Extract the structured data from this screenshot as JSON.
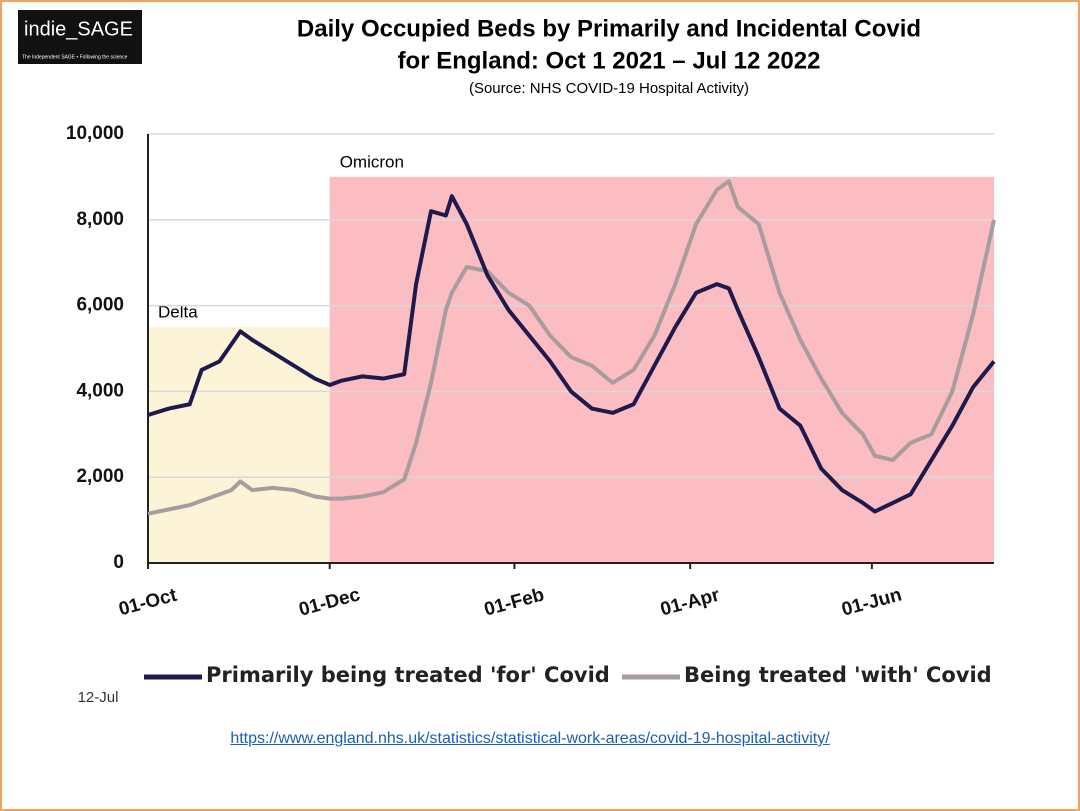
{
  "logo": {
    "name": "indie_SAGE",
    "tagline": "The Independent SAGE • Following the science"
  },
  "chart_data": {
    "type": "line",
    "title": "Daily Occupied Beds by Primarily and Incidental Covid",
    "title_line2": "for England: Oct 1 2021 – Jul 12 2022",
    "subtitle": "(Source: NHS COVID-19 Hospital Activity)",
    "x": [
      0,
      7,
      14,
      18,
      24,
      28,
      31,
      35,
      42,
      49,
      56,
      61,
      65,
      72,
      79,
      86,
      90,
      95,
      100,
      102,
      107,
      114,
      121,
      128,
      135,
      142,
      149,
      156,
      163,
      170,
      177,
      184,
      191,
      195,
      198,
      205,
      212,
      219,
      226,
      233,
      240,
      244,
      250,
      256,
      263,
      270,
      277,
      284
    ],
    "xlim": [
      0,
      284
    ],
    "xticks": [
      {
        "value": 0,
        "label": "01-Oct"
      },
      {
        "value": 61,
        "label": "01-Dec"
      },
      {
        "value": 123,
        "label": "01-Feb"
      },
      {
        "value": 182,
        "label": "01-Apr"
      },
      {
        "value": 243,
        "label": "01-Jun"
      }
    ],
    "ylim": [
      0,
      10000
    ],
    "yticks": [
      0,
      {
        "value": 2000,
        "label": "2,000"
      },
      {
        "value": 4000,
        "label": "4,000"
      },
      {
        "value": 6000,
        "label": "6,000"
      },
      {
        "value": 8000,
        "label": "8,000"
      },
      {
        "value": 10000,
        "label": "10,000"
      }
    ],
    "grid": true,
    "regions": [
      {
        "label": "Delta",
        "x": [
          0,
          61
        ],
        "y": 5500,
        "color": "#fdf3d6"
      },
      {
        "label": "Omicron",
        "x": [
          61,
          284
        ],
        "y": 9000,
        "color": "#fbbdc1"
      }
    ],
    "series": [
      {
        "name": "Primarily being treated 'for' Covid",
        "color": "#1f1a4d",
        "values": [
          3450,
          3600,
          3700,
          4500,
          4700,
          5100,
          5400,
          5200,
          4900,
          4600,
          4300,
          4150,
          4250,
          4350,
          4300,
          4400,
          6500,
          8200,
          8100,
          8550,
          7900,
          6700,
          5900,
          5300,
          4700,
          4000,
          3600,
          3500,
          3700,
          4600,
          5500,
          6300,
          6500,
          6400,
          5900,
          4800,
          3600,
          3200,
          2200,
          1700,
          1400,
          1200,
          1400,
          1600,
          2400,
          3200,
          4100,
          4700
        ]
      },
      {
        "name": "Being treated 'with' Covid",
        "color": "#a89c9c",
        "values": [
          1150,
          1250,
          1350,
          1450,
          1600,
          1700,
          1900,
          1700,
          1750,
          1700,
          1550,
          1500,
          1500,
          1550,
          1650,
          1950,
          2800,
          4200,
          5900,
          6300,
          6900,
          6800,
          6300,
          6000,
          5300,
          4800,
          4600,
          4200,
          4500,
          5300,
          6500,
          7900,
          8700,
          8900,
          8300,
          7900,
          6300,
          5200,
          4300,
          3500,
          3000,
          2500,
          2400,
          2800,
          3000,
          4000,
          5800,
          8000
        ]
      }
    ],
    "annotation": "12-Jul",
    "source_url": "https://www.england.nhs.uk/statistics/statistical-work-areas/covid-19-hospital-activity/"
  }
}
